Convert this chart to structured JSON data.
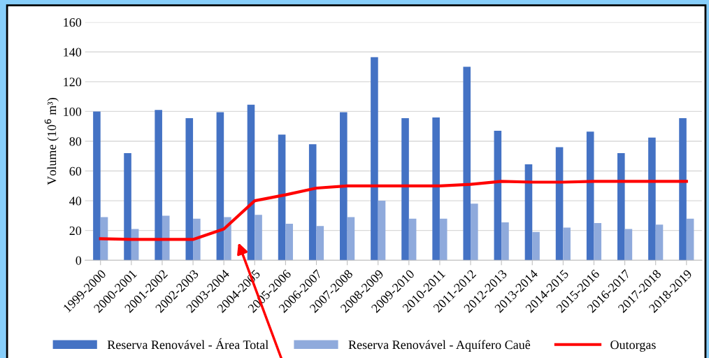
{
  "chart_data": {
    "type": "bar",
    "ylabel": "Volume (10$^{6}$ m³)",
    "categories": [
      "1999-2000",
      "2000-2001",
      "2001-2002",
      "2002-2003",
      "2003-2004",
      "2004-2005",
      "2005-2006",
      "2006-2007",
      "2007-2008",
      "2008-2009",
      "2009-2010",
      "2010-2011",
      "2011-2012",
      "2012-2013",
      "2013-2014",
      "2014-2015",
      "2015-2016",
      "2016-2017",
      "2017-2018",
      "2018-2019"
    ],
    "series": [
      {
        "name": "Reserva Renovável - Área Total",
        "color": "#4472c4",
        "values": [
          100,
          72,
          101,
          95.5,
          99.5,
          104.5,
          84.5,
          78,
          99.5,
          136.5,
          95.5,
          96,
          130,
          87,
          64.5,
          76,
          86.5,
          72,
          82.5,
          95.5
        ]
      },
      {
        "name": "Reserva Renovável - Aquífero Cauê",
        "color": "#8faadc",
        "values": [
          29,
          21,
          30,
          28,
          29,
          30.5,
          24.5,
          23,
          29,
          40,
          28,
          28,
          38,
          25.5,
          19,
          22,
          25,
          21,
          24,
          28
        ]
      },
      {
        "name": "Outorgas",
        "type": "line",
        "color": "#ff0000",
        "values": [
          14.5,
          14,
          14,
          14,
          21,
          40,
          44,
          48.5,
          50,
          50,
          50,
          50,
          51,
          53,
          52.5,
          52.5,
          53,
          53,
          53,
          53
        ]
      }
    ],
    "ylim": [
      0,
      160
    ],
    "yticks": [
      0,
      20,
      40,
      60,
      80,
      100,
      120,
      140,
      160
    ],
    "grid": "y",
    "legend": "bottom",
    "marker": "none",
    "line_style": "solid"
  }
}
